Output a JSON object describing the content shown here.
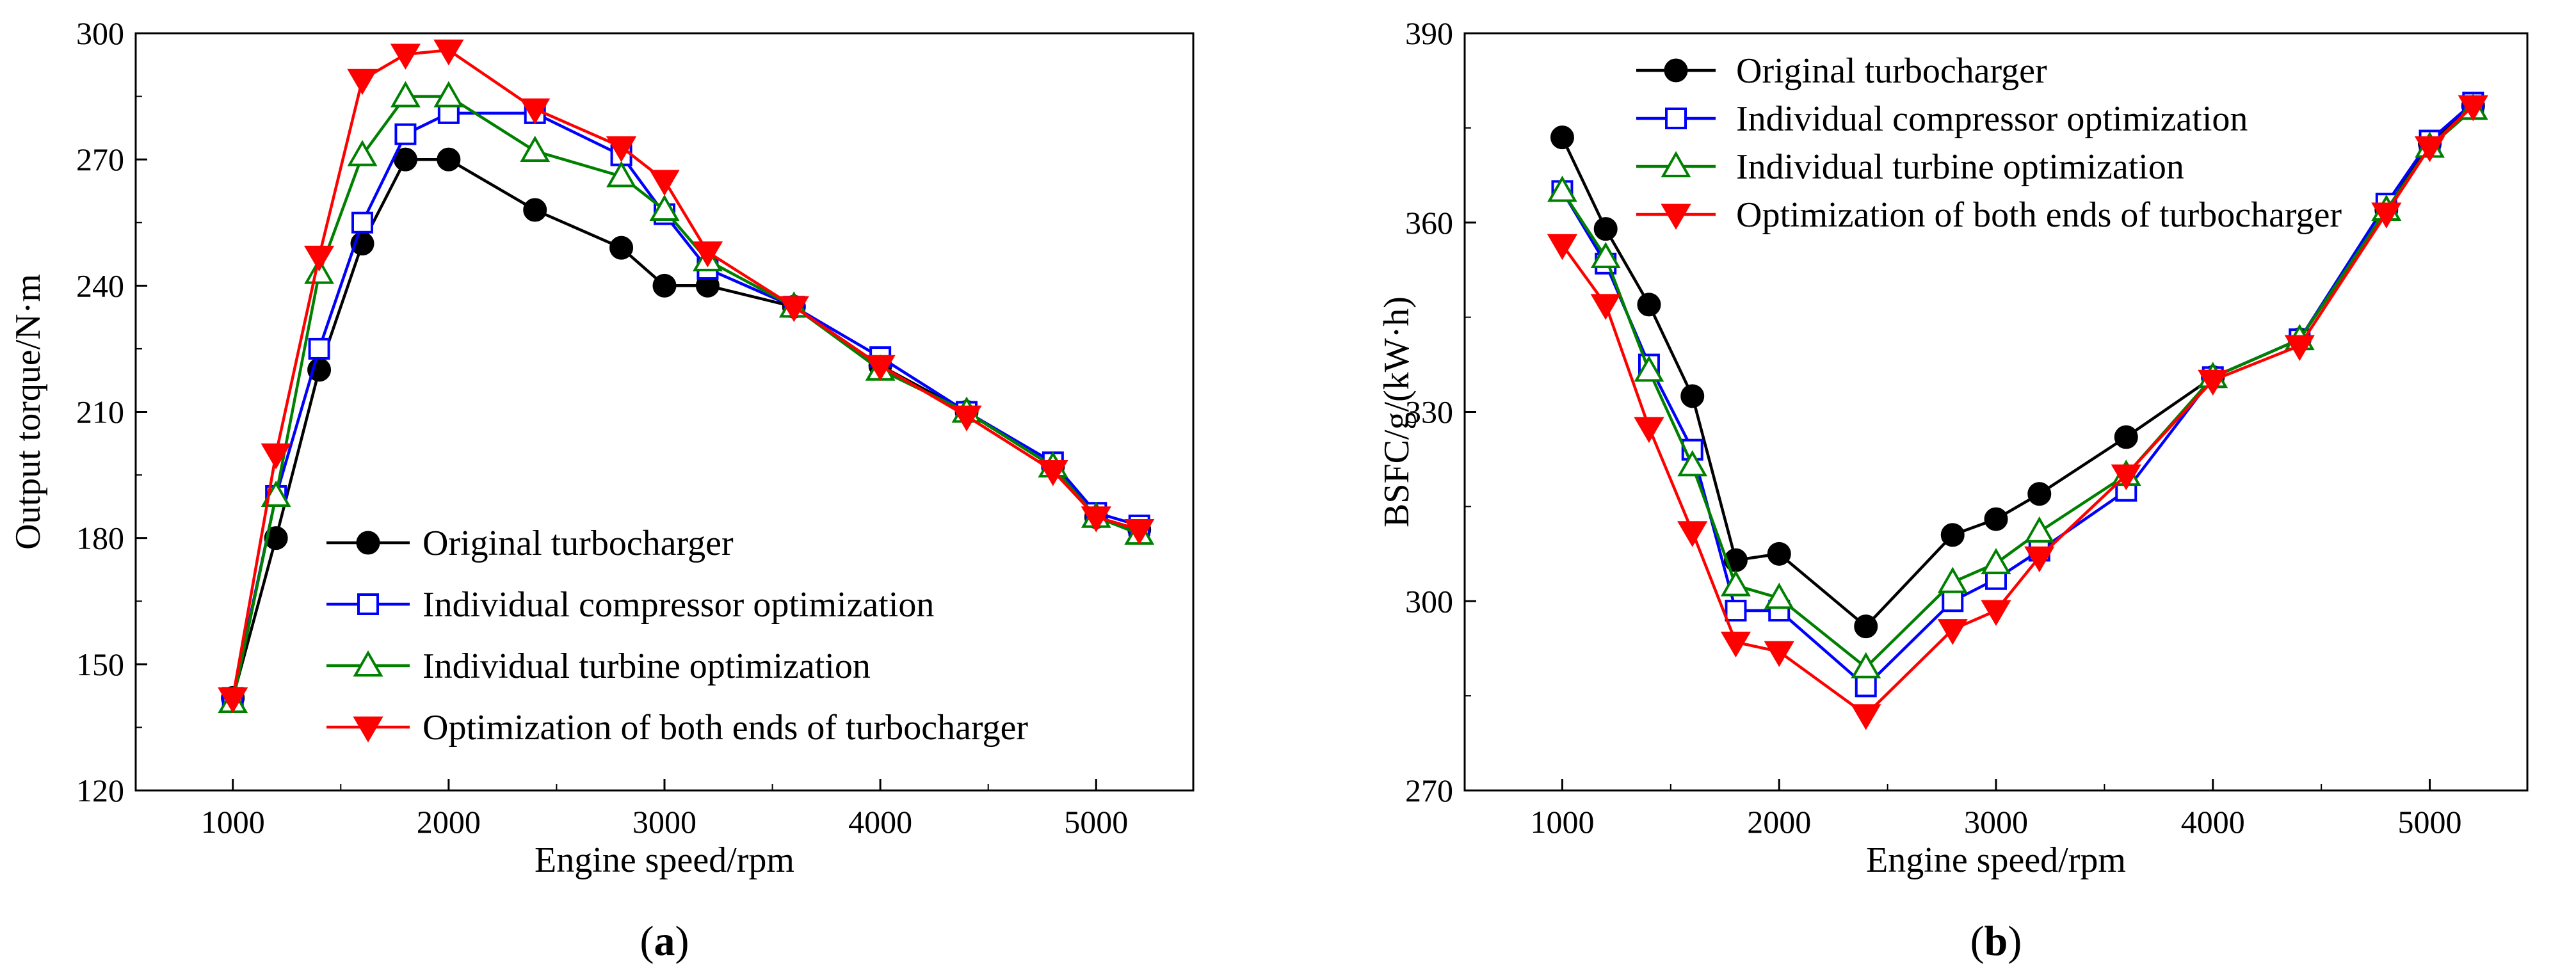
{
  "chart_data": [
    {
      "type": "line",
      "panel_label": "a",
      "xlabel": "Engine speed/rpm",
      "ylabel": "Output torque/N·m",
      "xlim": [
        550,
        5450
      ],
      "ylim": [
        120,
        300
      ],
      "xticks": [
        1000,
        2000,
        3000,
        4000,
        5000
      ],
      "yticks": [
        120,
        150,
        180,
        210,
        240,
        270,
        300
      ],
      "legend_position": "bottom-center",
      "series": [
        {
          "name": "Original turbocharger",
          "color": "#000000",
          "marker": "circle-filled",
          "points": [
            [
              1000,
              142
            ],
            [
              1200,
              180
            ],
            [
              1400,
              220
            ],
            [
              1600,
              250
            ],
            [
              1800,
              270
            ],
            [
              2000,
              270
            ],
            [
              2400,
              258
            ],
            [
              2800,
              249
            ],
            [
              3000,
              240
            ],
            [
              3200,
              240
            ],
            [
              3600,
              235
            ],
            [
              4000,
              221
            ],
            [
              4400,
              210
            ],
            [
              4800,
              197
            ],
            [
              5000,
              185
            ],
            [
              5200,
              182
            ]
          ]
        },
        {
          "name": "Individual compressor optimization",
          "color": "#0000ff",
          "marker": "square-open",
          "points": [
            [
              1000,
              142
            ],
            [
              1200,
              190
            ],
            [
              1400,
              225
            ],
            [
              1600,
              255
            ],
            [
              1800,
              276
            ],
            [
              2000,
              281
            ],
            [
              2400,
              281
            ],
            [
              2800,
              271
            ],
            [
              3000,
              257
            ],
            [
              3200,
              244
            ],
            [
              3600,
              235
            ],
            [
              4000,
              223
            ],
            [
              4400,
              210
            ],
            [
              4800,
              198
            ],
            [
              5000,
              186
            ],
            [
              5200,
              183
            ]
          ]
        },
        {
          "name": "Individual turbine optimization",
          "color": "#008000",
          "marker": "triangle-up-open",
          "points": [
            [
              1000,
              141
            ],
            [
              1200,
              190
            ],
            [
              1400,
              243
            ],
            [
              1600,
              271
            ],
            [
              1800,
              285
            ],
            [
              2000,
              285
            ],
            [
              2400,
              272
            ],
            [
              2800,
              266
            ],
            [
              3000,
              258
            ],
            [
              3200,
              246
            ],
            [
              3600,
              235
            ],
            [
              4000,
              220
            ],
            [
              4400,
              210
            ],
            [
              4800,
              197
            ],
            [
              5000,
              185
            ],
            [
              5200,
              181
            ]
          ]
        },
        {
          "name": "Optimization of both ends of turbocharger",
          "color": "#ff0000",
          "marker": "triangle-down-filled",
          "points": [
            [
              1000,
              142
            ],
            [
              1200,
              200
            ],
            [
              1400,
              247
            ],
            [
              1600,
              289
            ],
            [
              1800,
              295
            ],
            [
              2000,
              296
            ],
            [
              2400,
              282
            ],
            [
              2800,
              273
            ],
            [
              3000,
              265
            ],
            [
              3200,
              248
            ],
            [
              3600,
              235
            ],
            [
              4000,
              221
            ],
            [
              4400,
              209
            ],
            [
              4800,
              196
            ],
            [
              5000,
              185
            ],
            [
              5200,
              182
            ]
          ]
        }
      ]
    },
    {
      "type": "line",
      "panel_label": "b",
      "xlabel": "Engine speed/rpm",
      "ylabel": "BSFC/g/(kW·h)",
      "xlim": [
        550,
        5450
      ],
      "ylim": [
        270,
        390
      ],
      "xticks": [
        1000,
        2000,
        3000,
        4000,
        5000
      ],
      "yticks": [
        270,
        300,
        330,
        360,
        390
      ],
      "legend_position": "top-left",
      "series": [
        {
          "name": "Original turbocharger",
          "color": "#000000",
          "marker": "circle-filled",
          "points": [
            [
              1000,
              373.5
            ],
            [
              1200,
              359
            ],
            [
              1400,
              347
            ],
            [
              1600,
              332.5
            ],
            [
              1800,
              306.5
            ],
            [
              2000,
              307.5
            ],
            [
              2400,
              296
            ],
            [
              2800,
              310.5
            ],
            [
              3000,
              313
            ],
            [
              3200,
              317
            ],
            [
              3600,
              326
            ],
            [
              4000,
              335.5
            ],
            [
              4400,
              341.5
            ],
            [
              4800,
              362
            ],
            [
              5000,
              372.5
            ],
            [
              5200,
              378.5
            ]
          ]
        },
        {
          "name": "Individual compressor optimization",
          "color": "#0000ff",
          "marker": "square-open",
          "points": [
            [
              1000,
              365
            ],
            [
              1200,
              353.5
            ],
            [
              1400,
              337.5
            ],
            [
              1600,
              324
            ],
            [
              1800,
              298.5
            ],
            [
              2000,
              298.5
            ],
            [
              2400,
              286.5
            ],
            [
              2800,
              300
            ],
            [
              3000,
              303.5
            ],
            [
              3200,
              308
            ],
            [
              3600,
              317.5
            ],
            [
              4000,
              335.5
            ],
            [
              4400,
              341.5
            ],
            [
              4800,
              363
            ],
            [
              5000,
              373
            ],
            [
              5200,
              379
            ]
          ]
        },
        {
          "name": "Individual turbine optimization",
          "color": "#008000",
          "marker": "triangle-up-open",
          "points": [
            [
              1000,
              365
            ],
            [
              1200,
              354.5
            ],
            [
              1400,
              336.5
            ],
            [
              1600,
              321.5
            ],
            [
              1800,
              302.5
            ],
            [
              2000,
              300.5
            ],
            [
              2400,
              289.5
            ],
            [
              2800,
              303
            ],
            [
              3000,
              306
            ],
            [
              3200,
              311
            ],
            [
              3600,
              320
            ],
            [
              4000,
              335.5
            ],
            [
              4400,
              341.5
            ],
            [
              4800,
              362
            ],
            [
              5000,
              372
            ],
            [
              5200,
              378
            ]
          ]
        },
        {
          "name": "Optimization of both ends of turbocharger",
          "color": "#ff0000",
          "marker": "triangle-down-filled",
          "points": [
            [
              1000,
              356.5
            ],
            [
              1200,
              347
            ],
            [
              1400,
              327.5
            ],
            [
              1600,
              311
            ],
            [
              1800,
              293.5
            ],
            [
              2000,
              292
            ],
            [
              2400,
              282
            ],
            [
              2800,
              295.5
            ],
            [
              3000,
              298.5
            ],
            [
              3200,
              307
            ],
            [
              3600,
              320
            ],
            [
              4000,
              335
            ],
            [
              4400,
              340.5
            ],
            [
              4800,
              361.5
            ],
            [
              5000,
              372
            ],
            [
              5200,
              378.5
            ]
          ]
        }
      ]
    }
  ]
}
